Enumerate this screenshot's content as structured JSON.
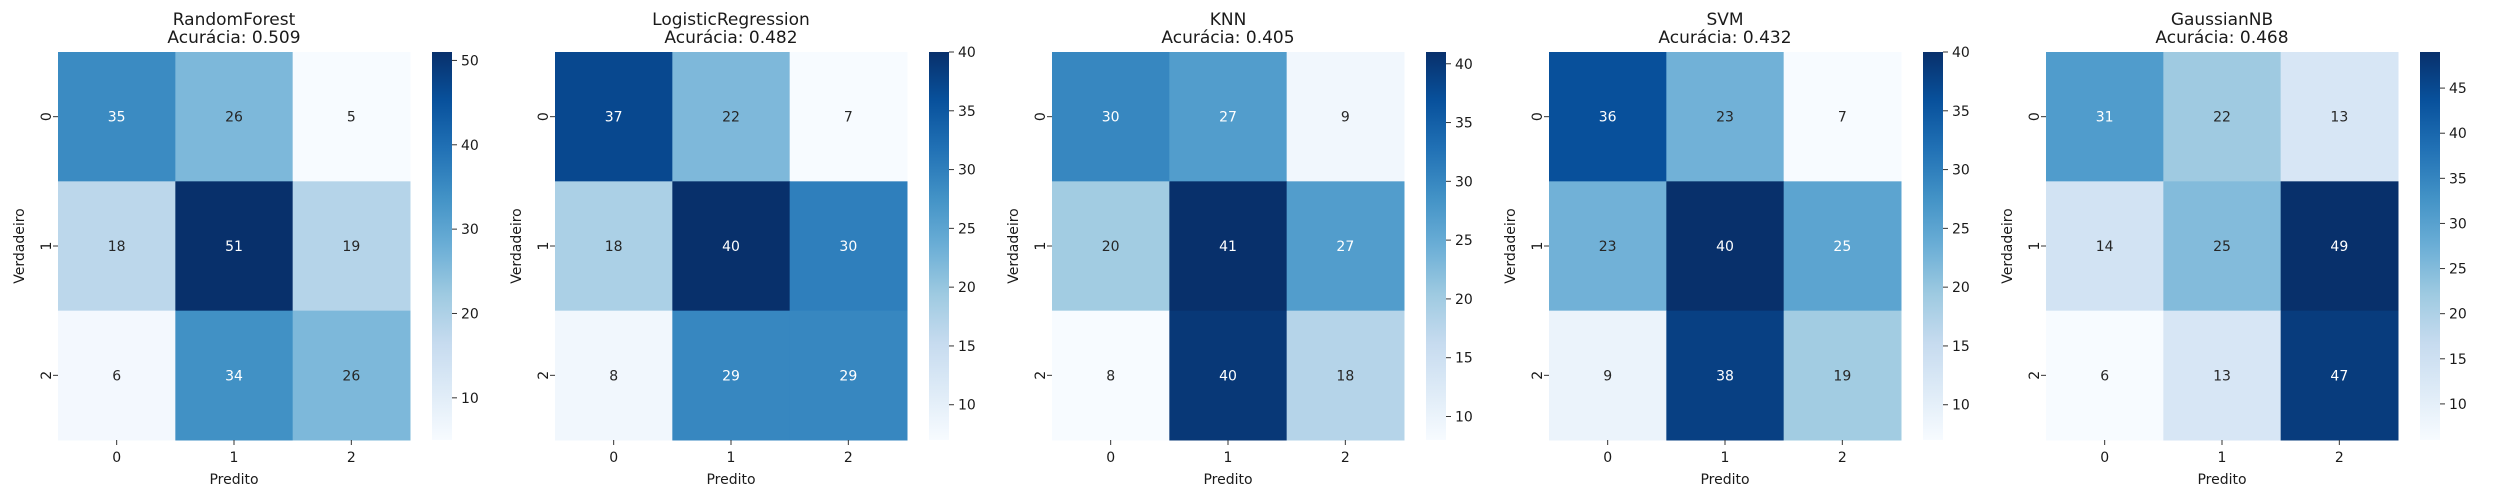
{
  "chart_data": [
    {
      "type": "heatmap",
      "title": "RandomForest",
      "subtitle": "Acurácia: 0.509",
      "xlabel": "Predito",
      "ylabel": "Verdadeiro",
      "x_categories": [
        "0",
        "1",
        "2"
      ],
      "y_categories": [
        "0",
        "1",
        "2"
      ],
      "matrix": [
        [
          35,
          26,
          5
        ],
        [
          18,
          51,
          19
        ],
        [
          6,
          34,
          26
        ]
      ],
      "colorbar": {
        "min": 5,
        "max": 51,
        "ticks": [
          10,
          20,
          30,
          40,
          50
        ]
      },
      "colormap": "Blues"
    },
    {
      "type": "heatmap",
      "title": "LogisticRegression",
      "subtitle": "Acurácia: 0.482",
      "xlabel": "Predito",
      "ylabel": "Verdadeiro",
      "x_categories": [
        "0",
        "1",
        "2"
      ],
      "y_categories": [
        "0",
        "1",
        "2"
      ],
      "matrix": [
        [
          37,
          22,
          7
        ],
        [
          18,
          40,
          30
        ],
        [
          8,
          29,
          29
        ]
      ],
      "colorbar": {
        "min": 7,
        "max": 40,
        "ticks": [
          10,
          15,
          20,
          25,
          30,
          35,
          40
        ]
      },
      "colormap": "Blues"
    },
    {
      "type": "heatmap",
      "title": "KNN",
      "subtitle": "Acurácia: 0.405",
      "xlabel": "Predito",
      "ylabel": "Verdadeiro",
      "x_categories": [
        "0",
        "1",
        "2"
      ],
      "y_categories": [
        "0",
        "1",
        "2"
      ],
      "matrix": [
        [
          30,
          27,
          9
        ],
        [
          20,
          41,
          27
        ],
        [
          8,
          40,
          18
        ]
      ],
      "colorbar": {
        "min": 8,
        "max": 41,
        "ticks": [
          10,
          15,
          20,
          25,
          30,
          35,
          40
        ]
      },
      "colormap": "Blues"
    },
    {
      "type": "heatmap",
      "title": "SVM",
      "subtitle": "Acurácia: 0.432",
      "xlabel": "Predito",
      "ylabel": "Verdadeiro",
      "x_categories": [
        "0",
        "1",
        "2"
      ],
      "y_categories": [
        "0",
        "1",
        "2"
      ],
      "matrix": [
        [
          36,
          23,
          7
        ],
        [
          23,
          40,
          25
        ],
        [
          9,
          38,
          19
        ]
      ],
      "colorbar": {
        "min": 7,
        "max": 40,
        "ticks": [
          10,
          15,
          20,
          25,
          30,
          35,
          40
        ]
      },
      "colormap": "Blues"
    },
    {
      "type": "heatmap",
      "title": "GaussianNB",
      "subtitle": "Acurácia: 0.468",
      "xlabel": "Predito",
      "ylabel": "Verdadeiro",
      "x_categories": [
        "0",
        "1",
        "2"
      ],
      "y_categories": [
        "0",
        "1",
        "2"
      ],
      "matrix": [
        [
          31,
          22,
          13
        ],
        [
          14,
          25,
          49
        ],
        [
          6,
          13,
          47
        ]
      ],
      "colorbar": {
        "min": 6,
        "max": 49,
        "ticks": [
          10,
          15,
          20,
          25,
          30,
          35,
          40,
          45
        ]
      },
      "colormap": "Blues"
    }
  ]
}
